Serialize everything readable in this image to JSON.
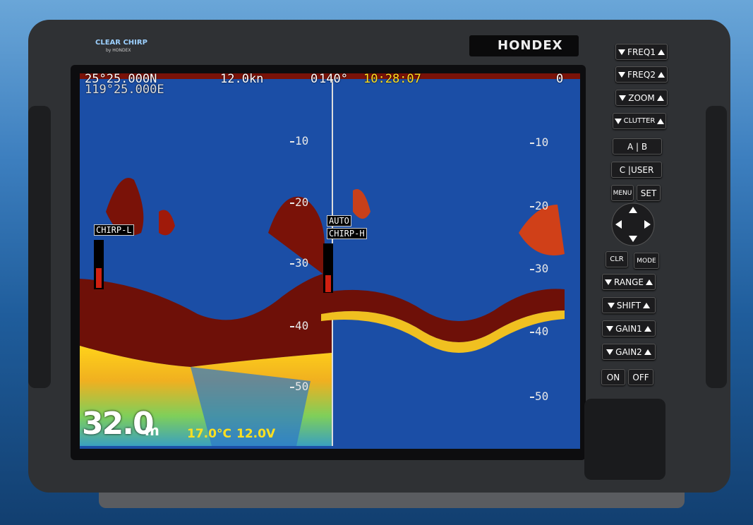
{
  "brand": "HONDEX",
  "logo": {
    "name": "CLEAR CHIRP",
    "sub": "by HONDEX"
  },
  "screen": {
    "latitude": "25°25.000N",
    "longitude": "119°25.000E",
    "speed": "12.0kn",
    "heading": "140°",
    "time": "10:28:07",
    "left_pane": {
      "top_depth": "0",
      "depth_marks": [
        10,
        20,
        30,
        40,
        50
      ],
      "frequency": "CHIRP-L"
    },
    "right_pane": {
      "top_depth": "0",
      "depth_marks": [
        10,
        20,
        30,
        40,
        50
      ],
      "gain_mode": "AUTO",
      "frequency": "CHIRP-H"
    },
    "depth": "32.0",
    "depth_unit": "m",
    "water_temp": "17.0°C",
    "voltage": "12.0V"
  },
  "buttons": {
    "freq1": "FREQ1",
    "freq2": "FREQ2",
    "zoom": "ZOOM",
    "clutter": "CLUTTER",
    "ab": "A | B",
    "cuser": "C |USER",
    "menu": "MENU",
    "set": "SET",
    "clr": "CLR",
    "mode": "MODE",
    "range": "RANGE",
    "shift": "SHIFT",
    "gain1": "GAIN1",
    "gain2": "GAIN2",
    "on": "ON",
    "off": "OFF"
  }
}
